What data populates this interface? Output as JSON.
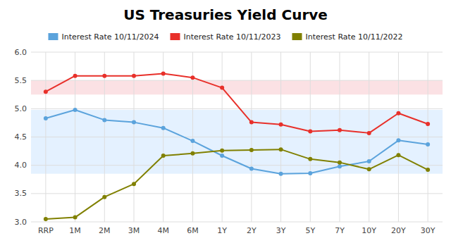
{
  "chart_data": {
    "type": "line",
    "title": "US Treasuries Yield Curve",
    "categories": [
      "RRP",
      "1M",
      "2M",
      "3M",
      "4M",
      "6M",
      "1Y",
      "2Y",
      "3Y",
      "5Y",
      "7Y",
      "10Y",
      "20Y",
      "30Y"
    ],
    "series": [
      {
        "name": "Interest Rate 10/11/2024",
        "color": "#5BA3DC",
        "values": [
          4.83,
          4.98,
          4.8,
          4.76,
          4.66,
          4.43,
          4.17,
          3.94,
          3.85,
          3.86,
          3.98,
          4.07,
          4.44,
          4.37
        ]
      },
      {
        "name": "Interest Rate 10/11/2023",
        "color": "#E8302A",
        "values": [
          5.3,
          5.58,
          5.58,
          5.58,
          5.62,
          5.55,
          5.37,
          4.76,
          4.72,
          4.6,
          4.62,
          4.57,
          4.92,
          4.73
        ]
      },
      {
        "name": "Interest Rate 10/11/2022",
        "color": "#808000",
        "values": [
          3.05,
          3.08,
          3.44,
          3.67,
          4.17,
          4.21,
          4.26,
          4.27,
          4.28,
          4.11,
          4.05,
          3.93,
          4.18,
          3.92
        ]
      }
    ],
    "bands": [
      {
        "ymin": 3.85,
        "ymax": 4.98,
        "color": "#DDEEFF"
      },
      {
        "ymin": 5.25,
        "ymax": 5.5,
        "color": "#FADADD"
      }
    ],
    "ylim": [
      3.0,
      6.0
    ],
    "yticks": [
      {
        "value": 3.0,
        "label": "3.0"
      },
      3.5,
      {
        "value": 4.0,
        "label": "4.0"
      },
      4.5,
      {
        "value": 5.0,
        "label": "5.0"
      },
      5.5,
      {
        "value": 6.0,
        "label": "6.0"
      }
    ],
    "grid": true,
    "legend": "top",
    "marker": "circle"
  }
}
